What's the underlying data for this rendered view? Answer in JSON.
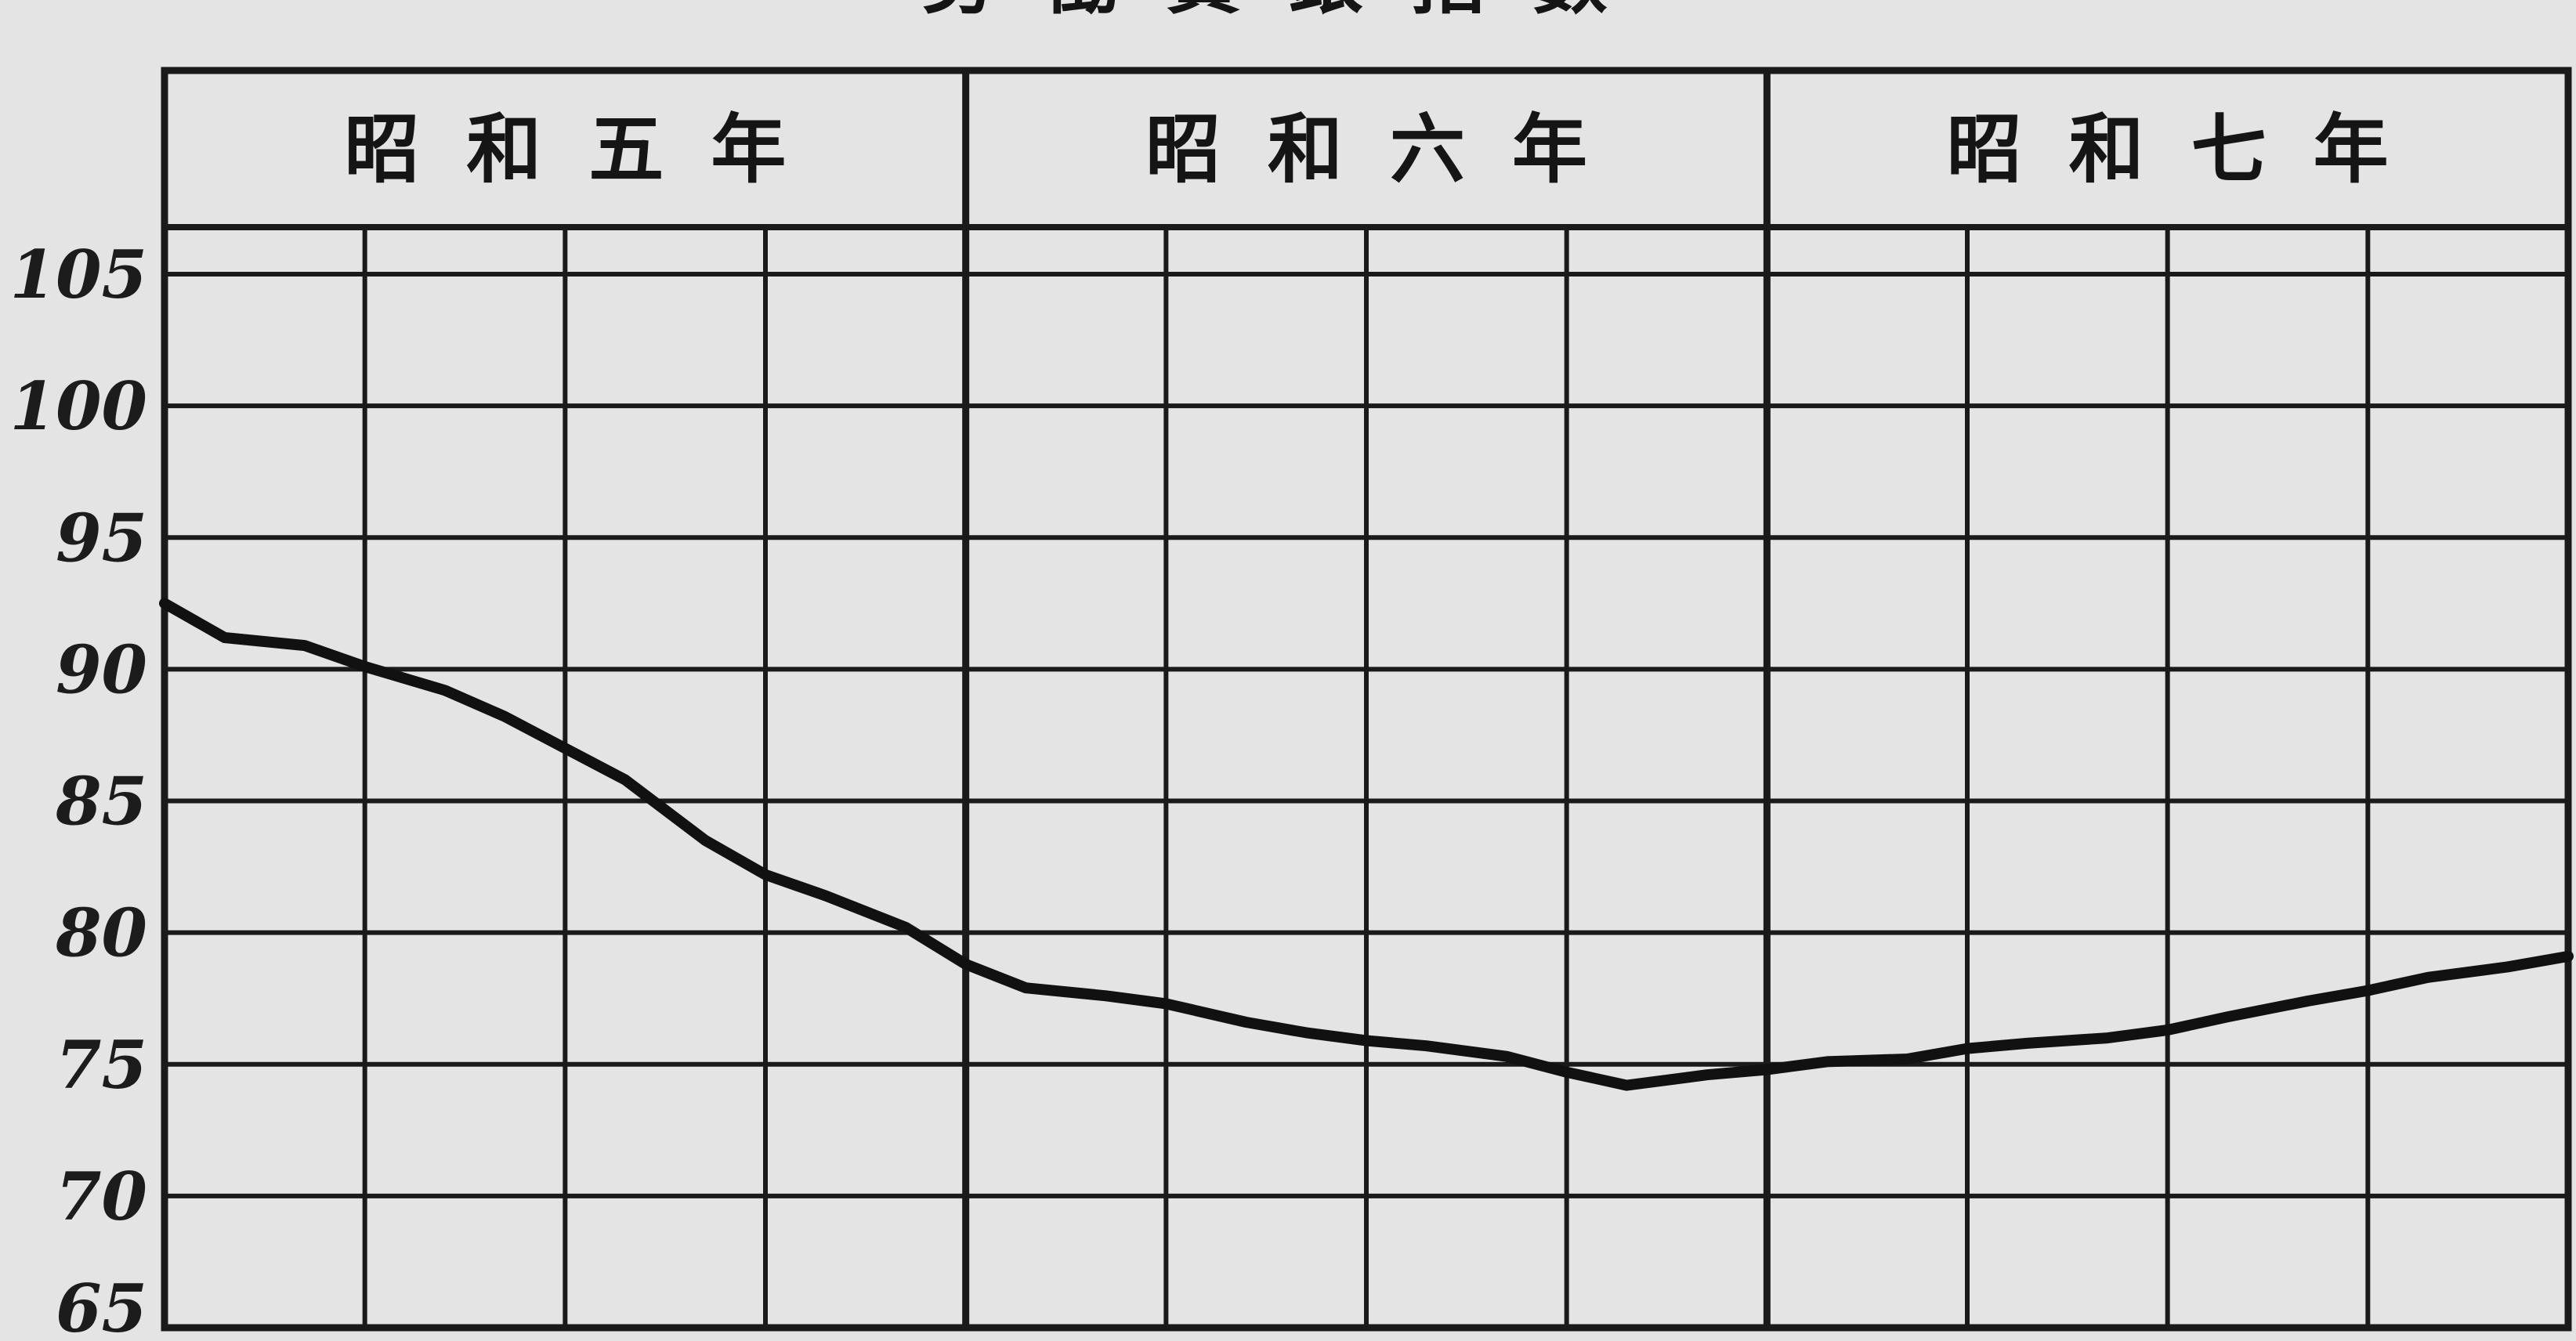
{
  "chart_data": {
    "type": "line",
    "title": "勞働賃銀指數",
    "periods": [
      "昭和五年",
      "昭和六年",
      "昭和七年"
    ],
    "x_unit_note": "quarterly (4 per year)",
    "y_ticks": [
      "105",
      "100",
      "95",
      "90",
      "85",
      "80",
      "75",
      "70",
      "65"
    ],
    "ylim": [
      65,
      105
    ],
    "grid": true,
    "series": [
      {
        "x": [
          0,
          0.3,
          0.7,
          1.0,
          1.4,
          1.7,
          2.0,
          2.3,
          2.7,
          3.0,
          3.3,
          3.7,
          4.0,
          4.3,
          4.7,
          5.0,
          5.4,
          5.7,
          6.0,
          6.3,
          6.7,
          7.0,
          7.3,
          7.7,
          8.0,
          8.3,
          8.7,
          9.0,
          9.3,
          9.7,
          10.0,
          10.3,
          10.7,
          11.0,
          11.3,
          11.7,
          12.0
        ],
        "y": [
          92.5,
          91.2,
          90.9,
          90.1,
          89.2,
          88.2,
          87.0,
          85.8,
          83.5,
          82.2,
          81.4,
          80.2,
          78.8,
          77.9,
          77.6,
          77.3,
          76.6,
          76.2,
          75.9,
          75.7,
          75.3,
          74.7,
          74.2,
          74.6,
          74.8,
          75.1,
          75.2,
          75.6,
          75.8,
          76.0,
          76.3,
          76.8,
          77.4,
          77.8,
          78.3,
          78.7,
          79.1
        ]
      }
    ]
  }
}
